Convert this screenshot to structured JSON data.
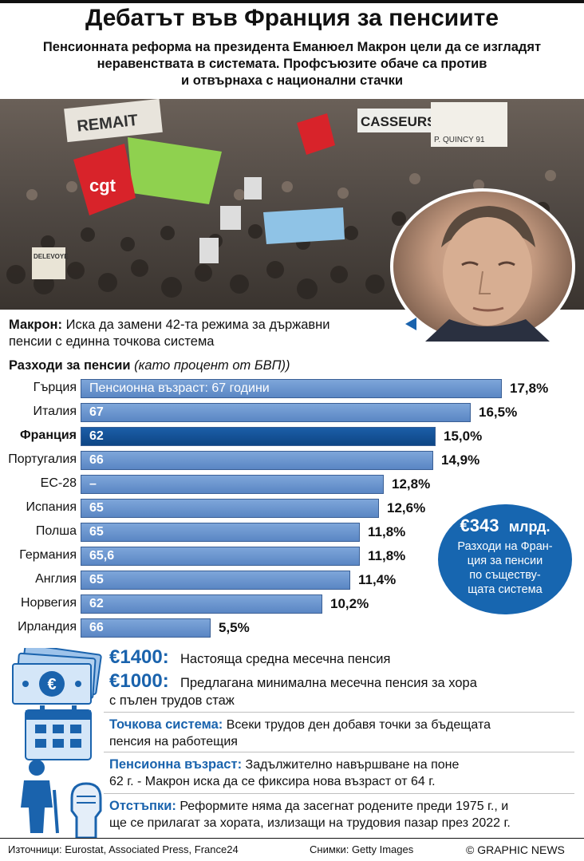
{
  "title": "Дебатът във Франция за пенсиите",
  "subtitle_lines": [
    "Пенсионната реформа на президента Еманюел Макрон цели да се изгладят",
    "неравенствата в системата. Профсъюзите обаче са против",
    "и отвърнаха с национални стачки"
  ],
  "photo_signs": [
    "CASSEURS",
    "cgt",
    "REMAIT",
    "P. QUINCY 91",
    "DELEVOYE"
  ],
  "macron": {
    "label": "Макрон:",
    "text_line1": "Иска да замени 42-та режима за държавни",
    "text_line2": "пенсии с единна точкова система"
  },
  "chart_data": {
    "type": "bar",
    "title": "Разходи за пенсии",
    "subtitle": "(като процент от БВП))",
    "categories": [
      "Гърция",
      "Италия",
      "Франция",
      "Португалия",
      "ЕС-28",
      "Испания",
      "Полша",
      "Германия",
      "Англия",
      "Норвегия",
      "Ирландия"
    ],
    "values": [
      17.8,
      16.5,
      15.0,
      14.9,
      12.8,
      12.6,
      11.8,
      11.8,
      11.4,
      10.2,
      5.5
    ],
    "value_labels": [
      "17,8%",
      "16,5%",
      "15,0%",
      "14,9%",
      "12,8%",
      "12,6%",
      "11,8%",
      "11,8%",
      "11,4%",
      "10,2%",
      "5,5%"
    ],
    "bar_labels": [
      "Пенсионна възраст: 67 години",
      "67",
      "62",
      "66",
      "–",
      "65",
      "65",
      "65,6",
      "65",
      "62",
      "66"
    ],
    "highlight": "Франция",
    "colors": {
      "bar": "#6a96d0",
      "highlight": "#0e4685"
    }
  },
  "circle": {
    "amount": "€343",
    "unit": "млрд.",
    "lines": [
      "Разходи на Фран-",
      "ция за пенсии",
      "по съществу-",
      "щата система"
    ]
  },
  "money": {
    "avg_amount": "€1400:",
    "avg_text": "Настояща средна месечна пенсия",
    "min_amount": "€1000:",
    "min_text_line1": "Предлагана минимална месечна пенсия за хора",
    "min_text_line2": "с пълен трудов стаж",
    "icon": "euro-banknotes-icon"
  },
  "points": {
    "label": "Точкова система:",
    "text_line1": "Всеки трудов ден добавя точки за бъдещата",
    "text_line2": "пенсия на работещия",
    "icon": "calendar-icon"
  },
  "age": {
    "label": "Пенсионна възраст:",
    "text_line1": "Задължително навършване на поне",
    "text_line2": "62 г. - Макрон иска да се фиксира нова възраст от 64 г.",
    "icon": "elderly-person-icon"
  },
  "concessions": {
    "label": "Отстъпки:",
    "text_line1": "Реформите няма да засегнат родените преди 1975 г., и",
    "text_line2": "ще се прилагат за хората, излизащи на трудовия пазар през 2022 г.",
    "icon": "raised-fist-icon"
  },
  "footer": {
    "sources": "Източници: Eurostat, Associated Press, France24",
    "photos": "Снимки: Getty Images",
    "credit": "© GRAPHIC NEWS"
  },
  "colors": {
    "accent": "#1a63ad",
    "circle": "#1766b0"
  }
}
